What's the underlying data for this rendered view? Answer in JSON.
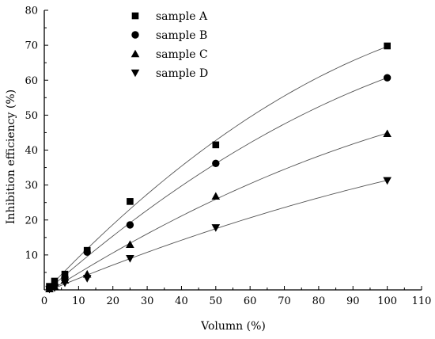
{
  "chart_data": {
    "type": "scatter",
    "title": "",
    "xlabel": "Volumn (%)",
    "ylabel": "Inhibition efficiency (%)",
    "xlim": [
      0,
      110
    ],
    "ylim": [
      0,
      80
    ],
    "xticks": [
      0,
      10,
      20,
      30,
      40,
      50,
      60,
      70,
      80,
      90,
      100,
      110
    ],
    "yticks": [
      10,
      20,
      30,
      40,
      50,
      60,
      70,
      80
    ],
    "grid": false,
    "legend_position": "top-left",
    "fit_lines": true,
    "series": [
      {
        "name": "sample A",
        "marker": "square",
        "x": [
          1.5,
          3,
          6,
          12.5,
          25,
          50,
          100
        ],
        "y": [
          1.0,
          2.5,
          4.5,
          11.3,
          25.3,
          41.5,
          69.8
        ]
      },
      {
        "name": "sample B",
        "marker": "circle",
        "x": [
          1.5,
          3,
          6,
          12.5,
          25,
          50,
          100
        ],
        "y": [
          0.5,
          1.5,
          3.5,
          10.8,
          18.6,
          36.2,
          60.7
        ]
      },
      {
        "name": "sample C",
        "marker": "triangle-up",
        "x": [
          1.5,
          3,
          6,
          12.5,
          25,
          50,
          100
        ],
        "y": [
          0.3,
          1.0,
          2.8,
          4.5,
          13.0,
          26.8,
          44.7
        ]
      },
      {
        "name": "sample D",
        "marker": "triangle-down",
        "x": [
          1.5,
          3,
          6,
          12.5,
          25,
          50,
          100
        ],
        "y": [
          0.2,
          0.6,
          2.0,
          3.3,
          9.0,
          17.8,
          31.3
        ]
      }
    ]
  }
}
